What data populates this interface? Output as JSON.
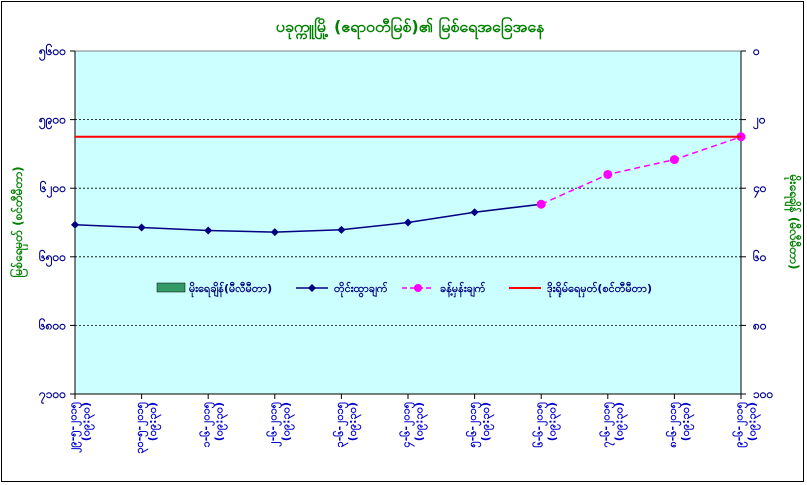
{
  "chart_data": {
    "type": "line",
    "title": "ပခုက္ကူမြို့ (ဧရာဝတီမြစ်)၏ မြစ်ရေအခြေအနေ",
    "ylabel_left": "မြစ်ရေမှတ် (စင်တီမီတာ)",
    "ylabel_right": "မိုးရေချိန် (မီလီမီတာ)",
    "ylim_left": [
      5600,
      7100
    ],
    "yticks_left": [
      "၅၆၀၀",
      "၅၉၀၀",
      "၆၂၀၀",
      "၆၅၀၀",
      "၆၈၀၀",
      "၇၁၀၀"
    ],
    "ylim_right": [
      0,
      100
    ],
    "yticks_right": [
      "၀",
      "၂၀",
      "၄၀",
      "၆၀",
      "၈၀",
      "၁၀၀"
    ],
    "x": [
      "၂၉-၅-၂၀၁၅\n(၀၉:၃၀)",
      "၃၀-၅-၂၀၁၅\n(၀၉:၃၀)",
      "၁-၆-၂၀၁၅\n(၀၉:၃၀)",
      "၂-၆-၂၀၁၅\n(၀၉:၃၀)",
      "၃-၆-၂၀၁၅\n(၀၉:၃၀)",
      "၄-၆-၂၀၁၅\n(၀၉:၃၀)",
      "၅-၆-၂၀၁၅\n(၀၉:၃၀)",
      "၆-၆-၂၀၁၅\n(၀၉:၃၀)",
      "၇-၆-၂၀၁၅\n(၀၉:၃၀)",
      "၈-၆-၂၀၁၅\n(၀၉:၃၀)",
      "၉-၆-၂၀၁၅\n(၀၉:၃၀)"
    ],
    "series": [
      {
        "name": "မိုးရေချိန်(မီလီမီတာ)",
        "kind": "bar",
        "axis": "right",
        "color": "#339966",
        "values": [
          0,
          0,
          0,
          0,
          0,
          0,
          0,
          0,
          0,
          0,
          0
        ]
      },
      {
        "name": "တိုင်းထွာချက်",
        "kind": "line",
        "axis": "left",
        "color": "#000080",
        "marker": "diamond",
        "values": [
          6340,
          6328,
          6315,
          6308,
          6318,
          6350,
          6395,
          6430,
          null,
          null,
          null
        ]
      },
      {
        "name": "ခန့်မှန်းချက်",
        "kind": "line",
        "dash": true,
        "axis": "left",
        "color": "#FF00FF",
        "marker": "circle",
        "values": [
          null,
          null,
          null,
          null,
          null,
          null,
          null,
          6430,
          6560,
          6625,
          6725
        ]
      },
      {
        "name": "ဒိုးရိုမ်ရေမှတ်(စင်တီမီတာ)",
        "kind": "line",
        "axis": "left",
        "color": "#FF0000",
        "marker": "none",
        "values": [
          6725,
          6725,
          6725,
          6725,
          6725,
          6725,
          6725,
          6725,
          6725,
          6725,
          6725
        ]
      }
    ],
    "grid": true,
    "legend": "center",
    "colors": {
      "plot_bg": "#CCFFFF",
      "title": "#008000",
      "ticks": "#00008B"
    }
  }
}
